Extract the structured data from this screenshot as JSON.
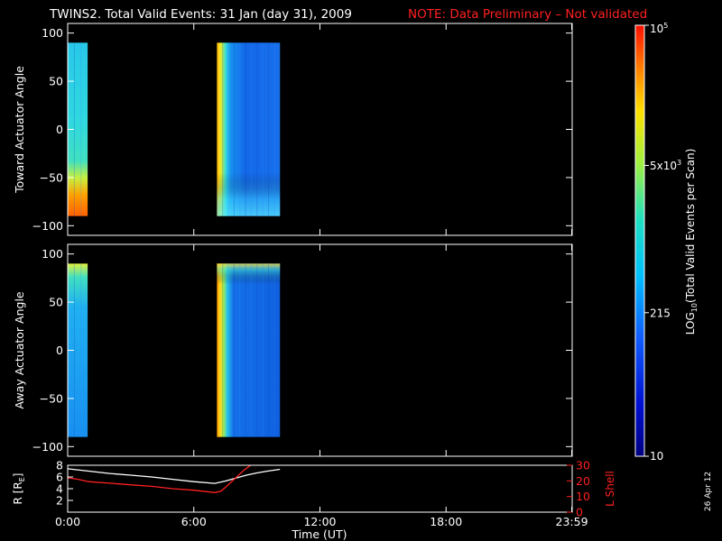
{
  "title": {
    "main": "TWINS2. Total Valid Events: 31 Jan (day  31), 2009",
    "note": "NOTE: Data Preliminary – Not validated"
  },
  "colors": {
    "background": "#000000",
    "axes": "#ffffff",
    "note": "#ff2020",
    "lshell": "#ff2020",
    "radius": "#ffffff"
  },
  "colorbar": {
    "label_prefix": "LOG",
    "label_sub": "10",
    "label_suffix": "(Total Valid Events per Scan)",
    "ticks": [
      {
        "label": "10",
        "value": 10
      },
      {
        "label": "215",
        "value": 215
      },
      {
        "label": "5x10",
        "sup": "3",
        "value": 5000
      },
      {
        "label": "10",
        "sup": "5",
        "value": 100000
      }
    ],
    "range": [
      10,
      100000
    ],
    "scale": "log"
  },
  "footer": {
    "xlabel": "Time (UT)",
    "date_stamp": "26 Apr 12"
  },
  "chart_data": [
    {
      "type": "heatmap",
      "ylabel": "Toward Actuator Angle",
      "xlim": [
        0,
        24
      ],
      "ylim": [
        -110,
        110
      ],
      "yticks": [
        -100,
        -50,
        0,
        50,
        100
      ],
      "blocks": [
        {
          "t_start": 0.0,
          "t_end": 0.95,
          "angle_min": -90,
          "angle_max": 90
        },
        {
          "t_start": 7.1,
          "t_end": 10.1,
          "angle_min": -90,
          "angle_max": 90
        }
      ]
    },
    {
      "type": "heatmap",
      "ylabel": "Away Actuator Angle",
      "xlim": [
        0,
        24
      ],
      "ylim": [
        -110,
        110
      ],
      "yticks": [
        -100,
        -50,
        0,
        50,
        100
      ],
      "blocks": [
        {
          "t_start": 0.0,
          "t_end": 0.95,
          "angle_min": -90,
          "angle_max": 90
        },
        {
          "t_start": 7.1,
          "t_end": 10.1,
          "angle_min": -90,
          "angle_max": 90
        }
      ]
    },
    {
      "type": "line",
      "ylabel": "R [R",
      "ylabel_sub": "E",
      "ylabel_end": "]",
      "ylabel_right": "L Shell",
      "xlim": [
        0,
        24
      ],
      "ylim": [
        0,
        8
      ],
      "ylim_right": [
        0,
        30
      ],
      "yticks": [
        2,
        4,
        6,
        8
      ],
      "yticks_right": [
        0,
        10,
        20,
        30
      ],
      "xticks": [
        {
          "t": 0,
          "label": "0:00"
        },
        {
          "t": 6,
          "label": "6:00"
        },
        {
          "t": 12,
          "label": "12:00"
        },
        {
          "t": 18,
          "label": "18:00"
        },
        {
          "t": 23.98,
          "label": "23:59"
        }
      ],
      "series": [
        {
          "key": "radius",
          "axis": "left",
          "x": [
            0,
            1,
            2,
            3,
            4,
            5,
            6,
            7,
            7.5,
            8,
            8.5,
            9,
            9.5,
            10.1
          ],
          "y": [
            7.4,
            7.0,
            6.6,
            6.3,
            6.0,
            5.6,
            5.2,
            4.9,
            5.3,
            5.8,
            6.3,
            6.7,
            7.0,
            7.3
          ]
        },
        {
          "key": "lshell",
          "axis": "right",
          "x": [
            0,
            0.5,
            1,
            2,
            3,
            4,
            5,
            6,
            7,
            7.3,
            7.6,
            8,
            8.4,
            8.8
          ],
          "y": [
            22,
            21,
            19.5,
            18.5,
            17.5,
            16.5,
            15,
            14,
            12.5,
            13.5,
            17,
            22,
            27,
            31
          ]
        }
      ]
    }
  ]
}
